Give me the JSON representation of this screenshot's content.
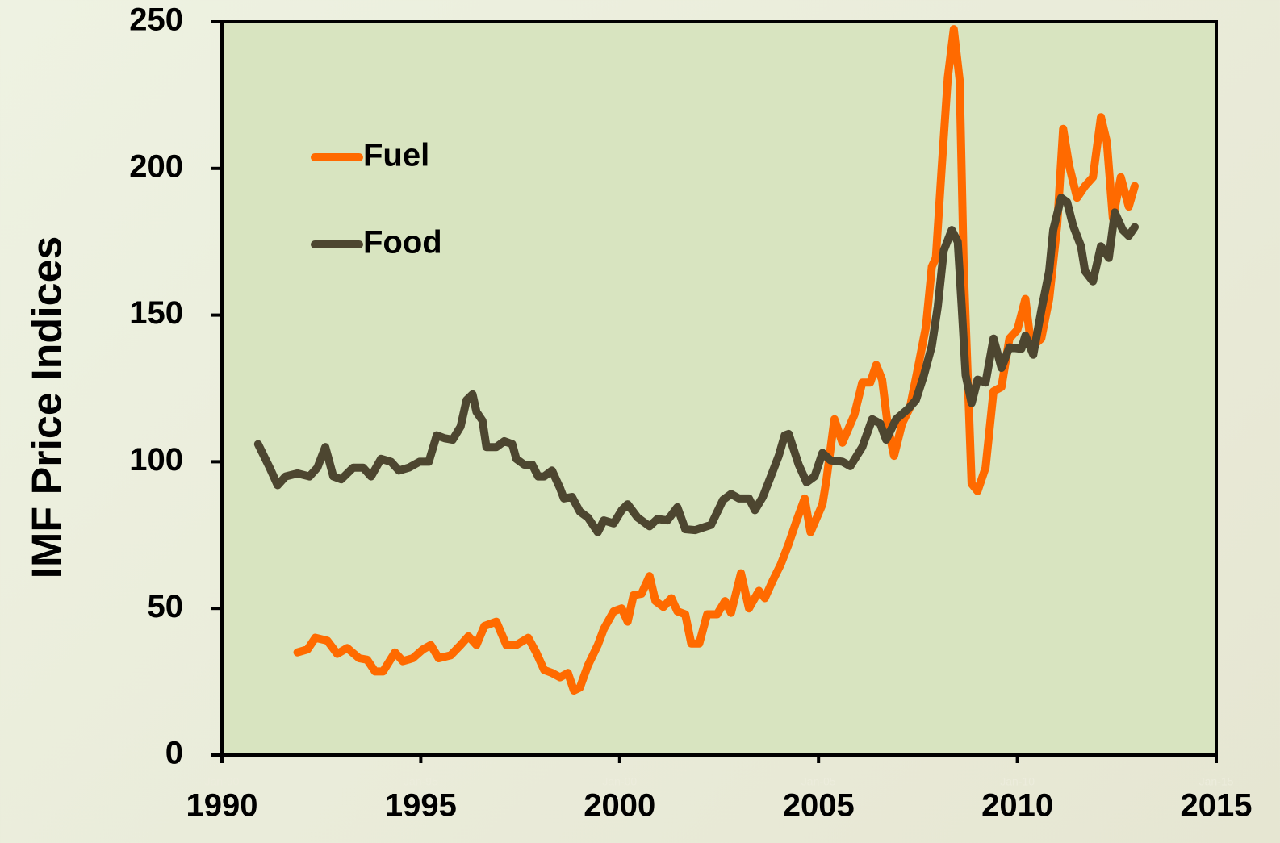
{
  "chart_data": {
    "type": "line",
    "ylabel": "IMF Price Indices",
    "xlim": [
      1990,
      2015
    ],
    "xticks": [
      1990,
      1995,
      2000,
      2005,
      2010,
      2015
    ],
    "xtick_sublabels": [
      "Jan-90",
      "Jan-95",
      "Jan-00",
      "Jan-05",
      "Jan-10",
      "Jan-15"
    ],
    "ylim": [
      0,
      250
    ],
    "yticks": [
      0,
      50,
      100,
      150,
      200,
      250
    ],
    "legend": "upper left",
    "grid": false,
    "series": [
      {
        "name": "Fuel",
        "color": "#ff6a00",
        "x": [
          1991.9,
          1992.15,
          1992.35,
          1992.65,
          1992.9,
          1993.15,
          1993.45,
          1993.65,
          1993.85,
          1994.05,
          1994.35,
          1994.55,
          1994.8,
          1995.05,
          1995.25,
          1995.45,
          1995.75,
          1996.0,
          1996.2,
          1996.4,
          1996.6,
          1996.9,
          1997.15,
          1997.4,
          1997.7,
          1997.9,
          1998.1,
          1998.3,
          1998.5,
          1998.7,
          1998.85,
          1999.0,
          1999.2,
          1999.45,
          1999.6,
          1999.85,
          2000.05,
          2000.2,
          2000.35,
          2000.55,
          2000.75,
          2000.9,
          2001.1,
          2001.3,
          2001.45,
          2001.65,
          2001.8,
          2002.0,
          2002.2,
          2002.45,
          2002.65,
          2002.8,
          2003.05,
          2003.25,
          2003.5,
          2003.65,
          2003.85,
          2004.05,
          2004.25,
          2004.45,
          2004.65,
          2004.8,
          2005.1,
          2005.2,
          2005.4,
          2005.6,
          2005.9,
          2006.1,
          2006.3,
          2006.45,
          2006.6,
          2006.75,
          2006.9,
          2007.1,
          2007.3,
          2007.5,
          2007.7,
          2007.85,
          2007.95,
          2008.1,
          2008.25,
          2008.4,
          2008.55,
          2008.65,
          2008.85,
          2009.0,
          2009.2,
          2009.4,
          2009.6,
          2009.8,
          2010.0,
          2010.2,
          2010.35,
          2010.6,
          2010.8,
          2011.0,
          2011.15,
          2011.3,
          2011.5,
          2011.7,
          2011.9,
          2012.1,
          2012.25,
          2012.4,
          2012.6,
          2012.8,
          2012.95
        ],
        "values": [
          35,
          36,
          40,
          39,
          34.5,
          36.5,
          33,
          32.5,
          28.5,
          28.5,
          35,
          32,
          33,
          36,
          37.5,
          33,
          34,
          37.5,
          40.5,
          37.5,
          44,
          45.5,
          37.5,
          37.5,
          40,
          35,
          29,
          28,
          26.5,
          28,
          22,
          23,
          30.5,
          37.5,
          43,
          49,
          50,
          45.5,
          54.5,
          55,
          61,
          52.5,
          50.5,
          53.5,
          49,
          48,
          38,
          38,
          48,
          48,
          52.5,
          48.5,
          62,
          50,
          56,
          53.5,
          59.5,
          65,
          72,
          80,
          87.5,
          76,
          85.5,
          94,
          114.5,
          106.5,
          116,
          127,
          127,
          133,
          128,
          111.5,
          102,
          113,
          118.5,
          132,
          146,
          166.5,
          169.5,
          201,
          231,
          247.5,
          230,
          166.5,
          92.5,
          90,
          98,
          124,
          125.5,
          142,
          145,
          155.5,
          139,
          142,
          155.5,
          180.5,
          213.5,
          201,
          190,
          194,
          197,
          217.5,
          209,
          183,
          197,
          187,
          194
        ]
      },
      {
        "name": "Food",
        "color": "#4d4630",
        "x": [
          1990.91,
          1991.2,
          1991.4,
          1991.6,
          1991.9,
          1992.2,
          1992.4,
          1992.6,
          1992.8,
          1993.0,
          1993.3,
          1993.55,
          1993.75,
          1994.0,
          1994.25,
          1994.45,
          1994.7,
          1994.97,
          1995.2,
          1995.4,
          1995.6,
          1995.8,
          1996.0,
          1996.15,
          1996.3,
          1996.4,
          1996.55,
          1996.65,
          1996.9,
          1997.1,
          1997.3,
          1997.4,
          1997.6,
          1997.8,
          1997.95,
          1998.1,
          1998.3,
          1998.5,
          1998.6,
          1998.8,
          1999.0,
          1999.2,
          1999.45,
          1999.6,
          1999.85,
          2000.05,
          2000.2,
          2000.45,
          2000.75,
          2000.95,
          2001.2,
          2001.45,
          2001.65,
          2001.9,
          2002.3,
          2002.6,
          2002.8,
          2003.0,
          2003.25,
          2003.4,
          2003.6,
          2003.8,
          2004.0,
          2004.15,
          2004.25,
          2004.5,
          2004.7,
          2004.9,
          2005.1,
          2005.3,
          2005.6,
          2005.8,
          2006.1,
          2006.35,
          2006.55,
          2006.7,
          2006.95,
          2007.25,
          2007.45,
          2007.65,
          2007.85,
          2008.0,
          2008.15,
          2008.35,
          2008.5,
          2008.6,
          2008.7,
          2008.85,
          2009.0,
          2009.2,
          2009.4,
          2009.6,
          2009.8,
          2010.1,
          2010.2,
          2010.4,
          2010.6,
          2010.8,
          2010.9,
          2011.1,
          2011.25,
          2011.4,
          2011.6,
          2011.7,
          2011.9,
          2012.1,
          2012.3,
          2012.45,
          2012.65,
          2012.8,
          2012.95
        ],
        "values": [
          106,
          98,
          92,
          95,
          96,
          95,
          98,
          105,
          95,
          94,
          98,
          98,
          95,
          101,
          100,
          97,
          98,
          100,
          100,
          109,
          108,
          107.5,
          112,
          121,
          123,
          117,
          114,
          105,
          105,
          107,
          106,
          101,
          99,
          99,
          95,
          95,
          97,
          91,
          87.5,
          88,
          83,
          81,
          76,
          80,
          79,
          83.5,
          85.5,
          81,
          78,
          80.5,
          80,
          84.5,
          77,
          76.7,
          78.5,
          87,
          89,
          87.5,
          87.5,
          83.5,
          88,
          95,
          102,
          109,
          109.5,
          99,
          93,
          95,
          103,
          100.5,
          100,
          98.5,
          105,
          114.5,
          113,
          107.5,
          114.5,
          118,
          121,
          129.5,
          139.5,
          153,
          172,
          179,
          175,
          153,
          129.5,
          120,
          128,
          127,
          142,
          132,
          139,
          138.5,
          143,
          136.5,
          151.5,
          165,
          179,
          190,
          188.5,
          180.5,
          173.5,
          165,
          161.5,
          173.5,
          169.5,
          185,
          179,
          177,
          180
        ]
      }
    ]
  }
}
